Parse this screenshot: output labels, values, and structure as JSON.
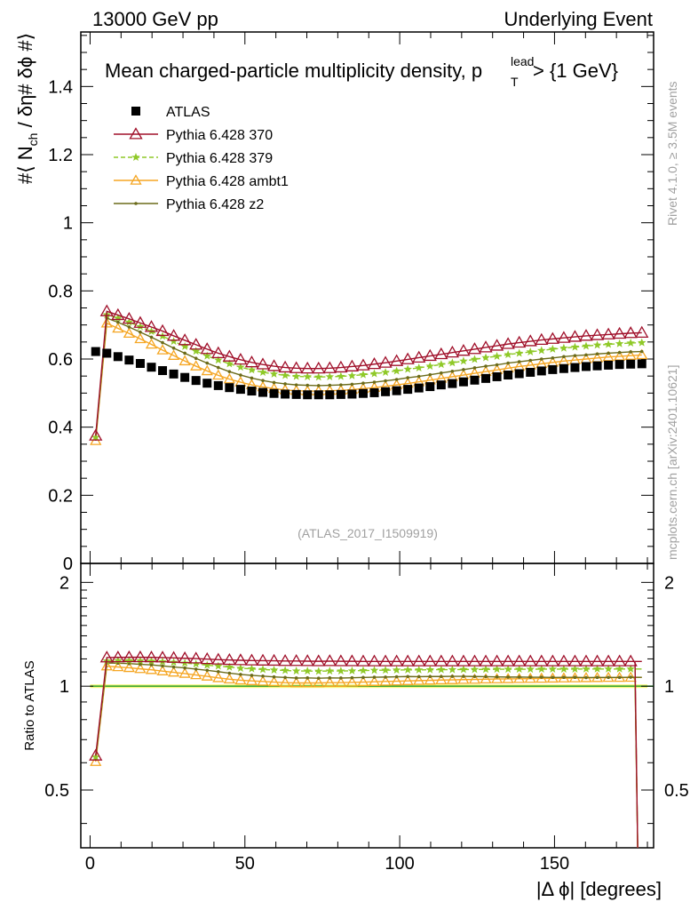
{
  "header": {
    "left": "13000 GeV pp",
    "right": "Underlying Event"
  },
  "side_labels": {
    "rivet": "Rivet 4.1.0, ≥ 3.5M events",
    "mcplots": "mcplots.cern.ch [arXiv:2401.10621]"
  },
  "colors": {
    "atlas": "#000000",
    "p370": "#a0102a",
    "p379": "#8fc928",
    "ambt1": "#f5a623",
    "z2": "#6b6b1a",
    "band": "#f5f57a",
    "refline": "#2ca02c"
  },
  "chart_data": {
    "type": "line",
    "title": "Mean charged-particle multiplicity density, p_T^lead > {1 GeV}",
    "title_main": "Mean charged-particle multiplicity density, p",
    "title_sup": "lead",
    "title_sub": "T",
    "title_tail": " > {1 GeV}",
    "ylabel": "#⟨ N_ch / δη# δϕ #⟩",
    "ylabel_main": "#⟨ N",
    "ylabel_sub": "ch",
    "ylabel_tail": " / δη# δϕ #⟩",
    "xlabel": "|Δ ϕ| [degrees]",
    "ratio_ylabel": "Ratio to ATLAS",
    "watermark": "(ATLAS_2017_I1509919)",
    "xlim": [
      -3,
      182
    ],
    "ylim": [
      0,
      1.56
    ],
    "ratio_ylim": [
      0.34,
      2.27
    ],
    "xticks": [
      0,
      50,
      100,
      150
    ],
    "yticks": [
      0,
      0.2,
      0.4,
      0.6,
      0.8,
      1,
      1.2,
      1.4
    ],
    "ytick_labels": [
      "0",
      "0.2",
      "0.4",
      "0.6",
      "0.8",
      "1",
      "1.2",
      "1.4"
    ],
    "ratio_yticks": [
      0.5,
      1,
      2
    ],
    "ratio_ytick_labels": [
      "0.5",
      "1",
      "2"
    ],
    "legend": [
      {
        "key": "atlas",
        "label": "ATLAS"
      },
      {
        "key": "p370",
        "label": "Pythia 6.428 370"
      },
      {
        "key": "p379",
        "label": "Pythia 6.428 379"
      },
      {
        "key": "ambt1",
        "label": "Pythia 6.428 ambt1"
      },
      {
        "key": "z2",
        "label": "Pythia 6.428 z2"
      }
    ],
    "x": [
      1.8,
      5.4,
      9.0,
      12.6,
      16.2,
      19.8,
      23.4,
      27.0,
      30.6,
      34.2,
      37.8,
      41.4,
      45.0,
      48.6,
      52.2,
      55.8,
      59.4,
      63.0,
      66.6,
      70.2,
      73.8,
      77.4,
      81.0,
      84.6,
      88.2,
      91.8,
      95.4,
      99.0,
      102.6,
      106.2,
      109.8,
      113.4,
      117.0,
      120.6,
      124.2,
      127.8,
      131.4,
      135.0,
      138.6,
      142.2,
      145.8,
      149.4,
      153.0,
      156.6,
      160.2,
      163.8,
      167.4,
      171.0,
      174.6,
      178.2
    ],
    "series": [
      {
        "key": "atlas",
        "name": "ATLAS",
        "values": [
          0.622,
          0.617,
          0.607,
          0.597,
          0.587,
          0.576,
          0.566,
          0.556,
          0.546,
          0.537,
          0.529,
          0.522,
          0.516,
          0.511,
          0.506,
          0.502,
          0.499,
          0.497,
          0.496,
          0.495,
          0.495,
          0.495,
          0.496,
          0.497,
          0.499,
          0.501,
          0.504,
          0.507,
          0.511,
          0.515,
          0.519,
          0.524,
          0.528,
          0.533,
          0.538,
          0.543,
          0.548,
          0.553,
          0.557,
          0.561,
          0.565,
          0.569,
          0.572,
          0.575,
          0.578,
          0.58,
          0.582,
          0.584,
          0.585,
          0.586
        ]
      },
      {
        "key": "p370",
        "name": "Pythia 6.428 370",
        "values": [
          0.375,
          0.74,
          0.729,
          0.718,
          0.706,
          0.694,
          0.682,
          0.668,
          0.655,
          0.642,
          0.629,
          0.617,
          0.607,
          0.598,
          0.59,
          0.584,
          0.579,
          0.575,
          0.573,
          0.572,
          0.572,
          0.573,
          0.575,
          0.578,
          0.581,
          0.585,
          0.589,
          0.594,
          0.599,
          0.604,
          0.609,
          0.614,
          0.619,
          0.624,
          0.629,
          0.634,
          0.639,
          0.644,
          0.648,
          0.652,
          0.656,
          0.659,
          0.662,
          0.665,
          0.668,
          0.67,
          0.672,
          0.674,
          0.676,
          0.677
        ]
      },
      {
        "key": "p379",
        "name": "Pythia 6.428 379",
        "values": [
          0.37,
          0.73,
          0.72,
          0.708,
          0.695,
          0.681,
          0.667,
          0.652,
          0.637,
          0.623,
          0.609,
          0.597,
          0.586,
          0.576,
          0.568,
          0.561,
          0.556,
          0.552,
          0.549,
          0.548,
          0.547,
          0.548,
          0.549,
          0.551,
          0.554,
          0.557,
          0.561,
          0.565,
          0.57,
          0.574,
          0.579,
          0.584,
          0.589,
          0.594,
          0.599,
          0.604,
          0.608,
          0.613,
          0.617,
          0.621,
          0.625,
          0.629,
          0.632,
          0.635,
          0.638,
          0.641,
          0.643,
          0.645,
          0.647,
          0.648
        ]
      },
      {
        "key": "ambt1",
        "name": "Pythia 6.428 ambt1",
        "values": [
          0.36,
          0.705,
          0.69,
          0.675,
          0.659,
          0.643,
          0.626,
          0.61,
          0.594,
          0.579,
          0.565,
          0.552,
          0.541,
          0.532,
          0.524,
          0.518,
          0.513,
          0.509,
          0.507,
          0.506,
          0.506,
          0.507,
          0.508,
          0.51,
          0.513,
          0.516,
          0.52,
          0.524,
          0.528,
          0.533,
          0.538,
          0.543,
          0.548,
          0.553,
          0.558,
          0.563,
          0.568,
          0.573,
          0.578,
          0.582,
          0.586,
          0.59,
          0.594,
          0.597,
          0.6,
          0.603,
          0.606,
          0.608,
          0.61,
          0.612
        ]
      },
      {
        "key": "z2",
        "name": "Pythia 6.428 z2",
        "values": [
          0.365,
          0.72,
          0.708,
          0.694,
          0.679,
          0.664,
          0.648,
          0.632,
          0.617,
          0.602,
          0.588,
          0.575,
          0.563,
          0.553,
          0.544,
          0.537,
          0.531,
          0.527,
          0.524,
          0.523,
          0.522,
          0.523,
          0.524,
          0.526,
          0.529,
          0.532,
          0.536,
          0.54,
          0.545,
          0.549,
          0.554,
          0.559,
          0.564,
          0.569,
          0.574,
          0.579,
          0.583,
          0.588,
          0.592,
          0.596,
          0.6,
          0.603,
          0.607,
          0.61,
          0.612,
          0.615,
          0.617,
          0.619,
          0.621,
          0.622
        ]
      }
    ],
    "ratio_series": [
      {
        "key": "p370",
        "values": [
          0.629,
          1.211,
          1.212,
          1.213,
          1.213,
          1.212,
          1.211,
          1.208,
          1.205,
          1.203,
          1.198,
          1.194,
          1.191,
          1.189,
          1.187,
          1.186,
          1.185,
          1.183,
          1.183,
          1.182,
          1.181,
          1.182,
          1.181,
          1.181,
          1.18,
          1.18,
          1.18,
          1.18,
          1.18,
          1.18,
          1.18,
          1.18,
          1.18,
          1.18,
          1.18,
          1.18,
          1.18,
          1.18,
          1.18,
          1.18,
          1.18,
          1.18,
          1.18,
          1.18,
          1.18,
          1.18,
          1.18,
          1.18,
          1.18,
          1.18
        ]
      },
      {
        "key": "p379",
        "values": [
          0.623,
          1.183,
          1.186,
          1.186,
          1.184,
          1.182,
          1.178,
          1.173,
          1.167,
          1.16,
          1.151,
          1.144,
          1.136,
          1.127,
          1.123,
          1.118,
          1.114,
          1.111,
          1.107,
          1.107,
          1.105,
          1.107,
          1.107,
          1.108,
          1.11,
          1.112,
          1.113,
          1.114,
          1.115,
          1.115,
          1.116,
          1.117,
          1.117,
          1.118,
          1.118,
          1.119,
          1.12,
          1.12,
          1.12,
          1.12,
          1.121,
          1.121,
          1.121,
          1.121,
          1.122,
          1.122,
          1.122,
          1.122,
          1.122,
          1.122
        ]
      },
      {
        "key": "ambt1",
        "values": [
          0.604,
          1.143,
          1.137,
          1.131,
          1.123,
          1.116,
          1.106,
          1.097,
          1.088,
          1.078,
          1.068,
          1.057,
          1.048,
          1.041,
          1.036,
          1.032,
          1.028,
          1.024,
          1.022,
          1.022,
          1.022,
          1.024,
          1.024,
          1.026,
          1.028,
          1.03,
          1.032,
          1.034,
          1.036,
          1.038,
          1.04,
          1.042,
          1.043,
          1.045,
          1.046,
          1.048,
          1.049,
          1.05,
          1.051,
          1.052,
          1.053,
          1.054,
          1.055,
          1.056,
          1.057,
          1.058,
          1.059,
          1.059,
          1.06,
          1.061
        ]
      },
      {
        "key": "z2",
        "values": [
          0.614,
          1.167,
          1.166,
          1.163,
          1.157,
          1.153,
          1.145,
          1.137,
          1.13,
          1.121,
          1.112,
          1.102,
          1.091,
          1.082,
          1.075,
          1.07,
          1.064,
          1.06,
          1.056,
          1.057,
          1.055,
          1.057,
          1.056,
          1.058,
          1.06,
          1.062,
          1.063,
          1.065,
          1.067,
          1.066,
          1.067,
          1.067,
          1.068,
          1.068,
          1.067,
          1.066,
          1.064,
          1.063,
          1.063,
          1.062,
          1.062,
          1.06,
          1.061,
          1.061,
          1.059,
          1.06,
          1.06,
          1.06,
          1.062,
          1.061
        ]
      }
    ],
    "ratio_last_x": 176.0,
    "ratio_last_value": 0.34
  }
}
